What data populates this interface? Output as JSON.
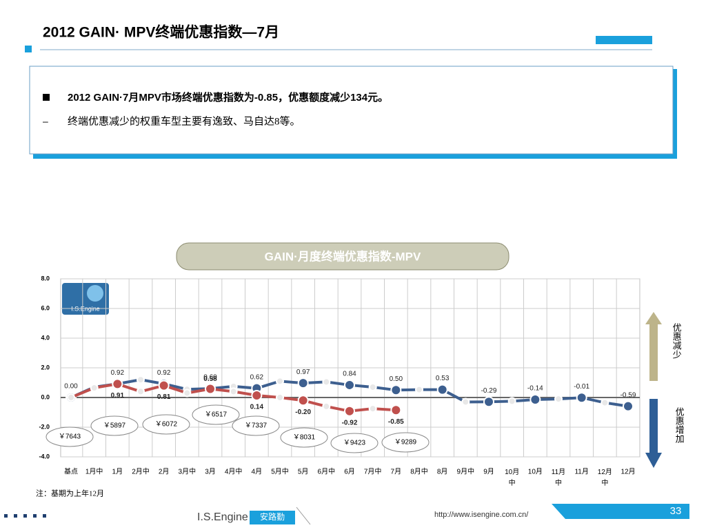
{
  "header": {
    "title": "2012 GAIN· MPV终端优惠指数—7月"
  },
  "summary": {
    "bullet": "2012 GAIN·7月MPV市场终端优惠指数为-0.85，优惠额度减少134元。",
    "sub": "终端优惠减少的权重车型主要有逸致、马自达8等。"
  },
  "chart_data": {
    "type": "line",
    "title": "GAIN·月度终端优惠指数-MPV",
    "categories": [
      "基点",
      "1月中",
      "1月",
      "2月中",
      "2月",
      "3月中",
      "3月",
      "4月中",
      "4月",
      "5月中",
      "5月",
      "6月中",
      "6月",
      "7月中",
      "7月",
      "8月中",
      "8月",
      "9月中",
      "9月",
      "10月中",
      "10月",
      "11月中",
      "11月",
      "12月中",
      "12月"
    ],
    "series": [
      {
        "color": "#3d5f8f",
        "values": [
          0,
          0.7,
          0.92,
          1.2,
          0.92,
          0.55,
          0.6,
          0.75,
          0.62,
          1.1,
          0.97,
          1.05,
          0.84,
          0.7,
          0.5,
          0.53,
          0.53,
          -0.3,
          -0.29,
          -0.25,
          -0.14,
          -0.1,
          -0.01,
          -0.35,
          -0.59
        ],
        "value_labels": [
          "0.00",
          null,
          "0.92",
          null,
          "0.92",
          null,
          "0.60",
          null,
          "0.62",
          null,
          "0.97",
          null,
          "0.84",
          null,
          "0.50",
          null,
          "0.53",
          null,
          "-0.29",
          null,
          "-0.14",
          null,
          "-0.01",
          null,
          "-0.59"
        ]
      },
      {
        "color": "#c0504d",
        "values": [
          0,
          0.65,
          0.91,
          0.4,
          0.81,
          0.3,
          0.58,
          0.4,
          0.14,
          0,
          -0.2,
          -0.6,
          -0.92,
          -0.75,
          -0.85,
          null,
          null,
          null,
          null,
          null,
          null,
          null,
          null,
          null,
          null
        ],
        "value_labels": [
          null,
          null,
          "0.91",
          null,
          "0.81",
          null,
          "0.58",
          null,
          "0.14",
          null,
          "-0.20",
          null,
          "-0.92",
          null,
          "-0.85",
          null,
          null,
          null,
          null,
          null,
          null,
          null,
          null,
          null,
          null
        ]
      }
    ],
    "price_labels": [
      "￥7643",
      "￥5897",
      "￥6072",
      "￥6517",
      "￥7337",
      "￥8031",
      "￥9423",
      "￥9289"
    ],
    "ylim": [
      -4,
      8
    ],
    "yticks": [
      {
        "value": -4,
        "label": "-4.0"
      },
      {
        "value": -2,
        "label": "-2.0"
      },
      {
        "value": 0,
        "label": "0.0"
      },
      {
        "value": 2,
        "label": "2.0"
      },
      {
        "value": 4,
        "label": "4.0"
      },
      {
        "value": 6,
        "label": "6.0"
      },
      {
        "value": 8,
        "label": "8.0"
      }
    ],
    "grid": true
  },
  "side": {
    "up": "优惠减少",
    "down": "优惠增加"
  },
  "note": "注：基期为上年12月",
  "logo": "I.S.Engine",
  "footer": {
    "brand": "I.S.Engine",
    "brand_cn": "安路勤",
    "url": "http://www.isengine.com.cn/",
    "page": "33"
  }
}
